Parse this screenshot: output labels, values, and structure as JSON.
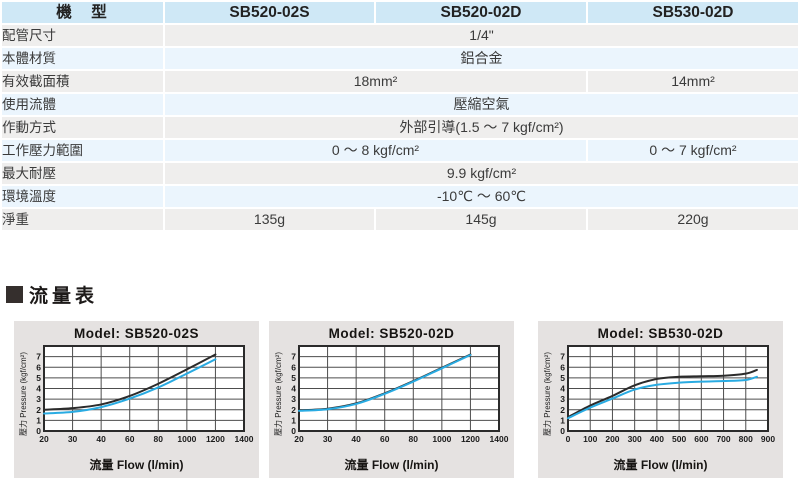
{
  "table": {
    "header": {
      "label": "機　型",
      "models": [
        "SB520-02S",
        "SB520-02D",
        "SB530-02D"
      ]
    },
    "rows": [
      {
        "label": "配管尺寸",
        "cells": [
          {
            "span": 3,
            "text": "1/4\""
          }
        ]
      },
      {
        "label": "本體材質",
        "cells": [
          {
            "span": 3,
            "text": "鋁合金"
          }
        ]
      },
      {
        "label": "有效截面積",
        "cells": [
          {
            "span": 2,
            "text": "18mm²"
          },
          {
            "span": 1,
            "text": "14mm²"
          }
        ]
      },
      {
        "label": "使用流體",
        "cells": [
          {
            "span": 3,
            "text": "壓縮空氣"
          }
        ]
      },
      {
        "label": "作動方式",
        "cells": [
          {
            "span": 3,
            "text": "外部引導(1.5 ～ 7 kgf/cm²)"
          }
        ]
      },
      {
        "label": "工作壓力範圍",
        "cells": [
          {
            "span": 2,
            "text": "0 ～ 8 kgf/cm²"
          },
          {
            "span": 1,
            "text": "0 ～ 7 kgf/cm²"
          }
        ]
      },
      {
        "label": "最大耐壓",
        "cells": [
          {
            "span": 3,
            "text": "9.9 kgf/cm²"
          }
        ]
      },
      {
        "label": "環境溫度",
        "cells": [
          {
            "span": 3,
            "text": "-10℃ ～ 60℃"
          }
        ]
      },
      {
        "label": "淨重",
        "cells": [
          {
            "span": 1,
            "text": "135g"
          },
          {
            "span": 1,
            "text": "145g"
          },
          {
            "span": 1,
            "text": "220g"
          }
        ]
      }
    ]
  },
  "section": {
    "title": "流量表"
  },
  "chart_data": [
    {
      "type": "line",
      "title": "Model: SB520-02S",
      "xlabel": "流量 Flow (l/min)",
      "ylabel": "壓力 Pressure (kgf/cm²)",
      "x_tick_labels": [
        "20",
        "30",
        "40",
        "60",
        "80",
        "1000",
        "1200",
        "1400"
      ],
      "y_ticks": [
        0,
        1,
        2,
        3,
        4,
        5,
        6,
        7
      ],
      "ylim": [
        0,
        8
      ],
      "grid": true,
      "series": [
        {
          "name": "upper-black",
          "color": "#2b2b2b",
          "points": [
            [
              0,
              2.0
            ],
            [
              1,
              2.15
            ],
            [
              2,
              2.5
            ],
            [
              3,
              3.3
            ],
            [
              4,
              4.45
            ],
            [
              5,
              5.8
            ],
            [
              6,
              7.2
            ]
          ]
        },
        {
          "name": "lower-cyan",
          "color": "#29abe2",
          "points": [
            [
              0,
              1.65
            ],
            [
              1,
              1.8
            ],
            [
              2,
              2.25
            ],
            [
              3,
              3.05
            ],
            [
              4,
              4.1
            ],
            [
              5,
              5.4
            ],
            [
              6,
              6.75
            ]
          ]
        }
      ]
    },
    {
      "type": "line",
      "title": "Model: SB520-02D",
      "xlabel": "流量 Flow (l/min)",
      "ylabel": "壓力 Pressure (kgf/cm²)",
      "x_tick_labels": [
        "20",
        "30",
        "40",
        "60",
        "80",
        "1000",
        "1200",
        "1400"
      ],
      "y_ticks": [
        0,
        1,
        2,
        3,
        4,
        5,
        6,
        7
      ],
      "ylim": [
        0,
        8
      ],
      "grid": true,
      "series": [
        {
          "name": "upper-black",
          "color": "#2b2b2b",
          "points": [
            [
              0,
              1.95
            ],
            [
              1,
              2.1
            ],
            [
              2,
              2.6
            ],
            [
              3,
              3.55
            ],
            [
              4,
              4.7
            ],
            [
              5,
              5.95
            ],
            [
              6,
              7.2
            ]
          ]
        },
        {
          "name": "lower-cyan",
          "color": "#29abe2",
          "points": [
            [
              0,
              1.9
            ],
            [
              1,
              2.05
            ],
            [
              2,
              2.55
            ],
            [
              3,
              3.5
            ],
            [
              4,
              4.65
            ],
            [
              5,
              5.9
            ],
            [
              6,
              7.15
            ]
          ]
        }
      ]
    },
    {
      "type": "line",
      "title": "Model: SB530-02D",
      "xlabel": "流量 Flow (l/min)",
      "ylabel": "壓力 Pressure (kgf/cm²)",
      "x_tick_labels": [
        "0",
        "100",
        "200",
        "300",
        "400",
        "500",
        "600",
        "700",
        "800",
        "900"
      ],
      "y_ticks": [
        0,
        1,
        2,
        3,
        4,
        5,
        6,
        7
      ],
      "ylim": [
        0,
        8
      ],
      "grid": true,
      "series": [
        {
          "name": "upper-black",
          "color": "#2b2b2b",
          "points": [
            [
              0,
              1.3
            ],
            [
              1,
              2.4
            ],
            [
              2,
              3.3
            ],
            [
              3,
              4.3
            ],
            [
              4,
              4.9
            ],
            [
              5,
              5.1
            ],
            [
              6,
              5.15
            ],
            [
              7,
              5.2
            ],
            [
              8,
              5.4
            ],
            [
              8.5,
              5.75
            ]
          ]
        },
        {
          "name": "lower-cyan",
          "color": "#29abe2",
          "points": [
            [
              0,
              1.2
            ],
            [
              1,
              2.2
            ],
            [
              2,
              3.05
            ],
            [
              3,
              3.9
            ],
            [
              4,
              4.35
            ],
            [
              5,
              4.55
            ],
            [
              6,
              4.65
            ],
            [
              7,
              4.7
            ],
            [
              8,
              4.8
            ],
            [
              8.5,
              5.1
            ]
          ]
        }
      ]
    }
  ],
  "colors": {
    "header_bg": "#cfe8f6",
    "row_gray": "#efeeed",
    "row_blue": "#ebf5fd",
    "chart_bg": "#e5e2e1",
    "curve_black": "#2b2b2b",
    "curve_cyan": "#29abe2"
  }
}
